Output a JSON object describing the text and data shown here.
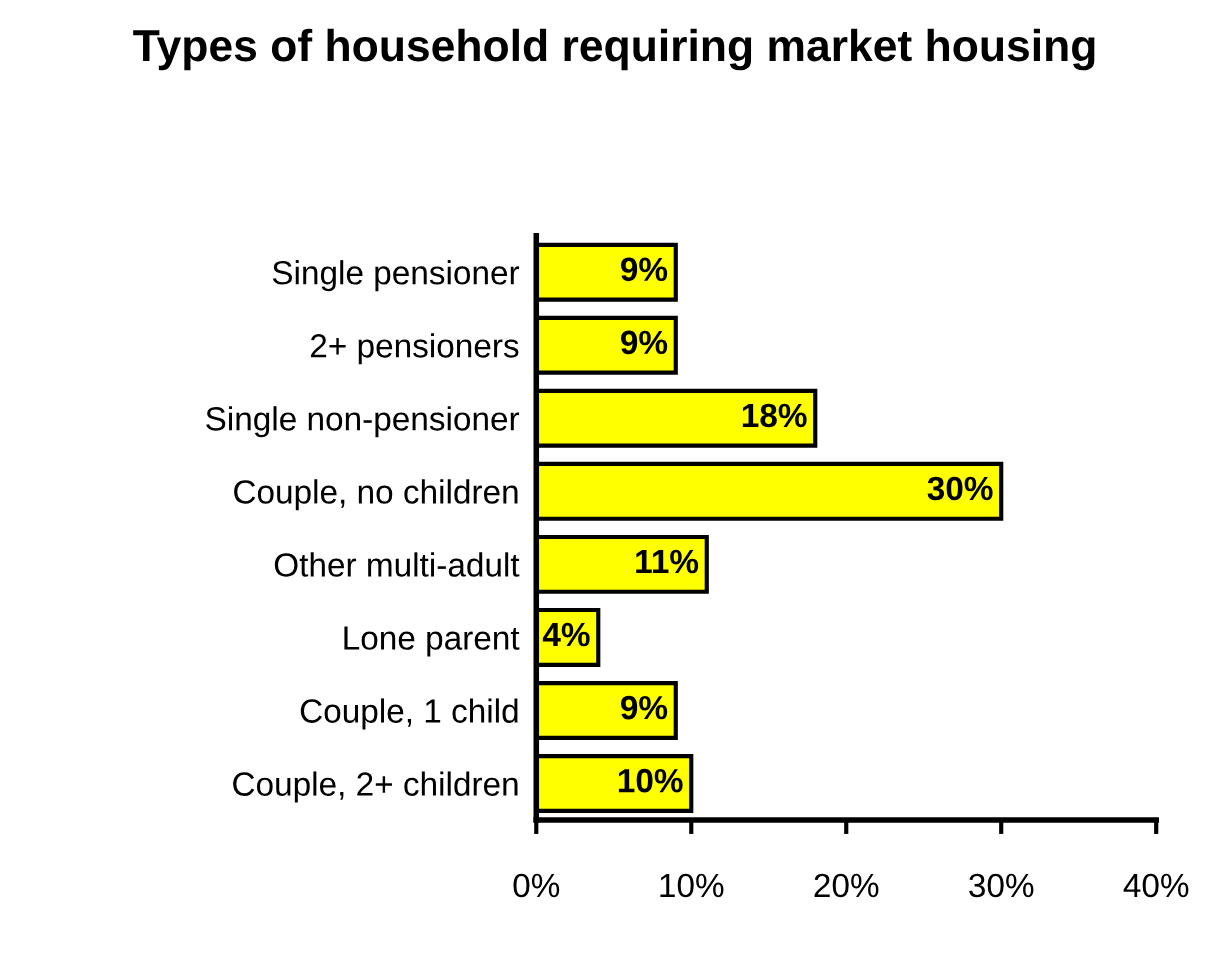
{
  "chart_data": {
    "type": "bar",
    "orientation": "horizontal",
    "title": "Types of household requiring market housing",
    "categories": [
      "Single pensioner",
      "2+ pensioners",
      "Single non-pensioner",
      "Couple, no children",
      "Other multi-adult",
      "Lone parent",
      "Couple, 1 child",
      "Couple, 2+ children"
    ],
    "values": [
      9,
      9,
      18,
      30,
      11,
      4,
      9,
      10
    ],
    "value_labels": [
      "9%",
      "9%",
      "18%",
      "30%",
      "11%",
      "4%",
      "9%",
      "10%"
    ],
    "color": "#ffff00",
    "xlim": [
      0,
      40
    ],
    "xticks": [
      {
        "value": 0,
        "label": "0%"
      },
      {
        "value": 10,
        "label": "10%"
      },
      {
        "value": 20,
        "label": "20%"
      },
      {
        "value": 30,
        "label": "30%"
      },
      {
        "value": 40,
        "label": "40%"
      }
    ],
    "grid": false,
    "legend": false
  }
}
